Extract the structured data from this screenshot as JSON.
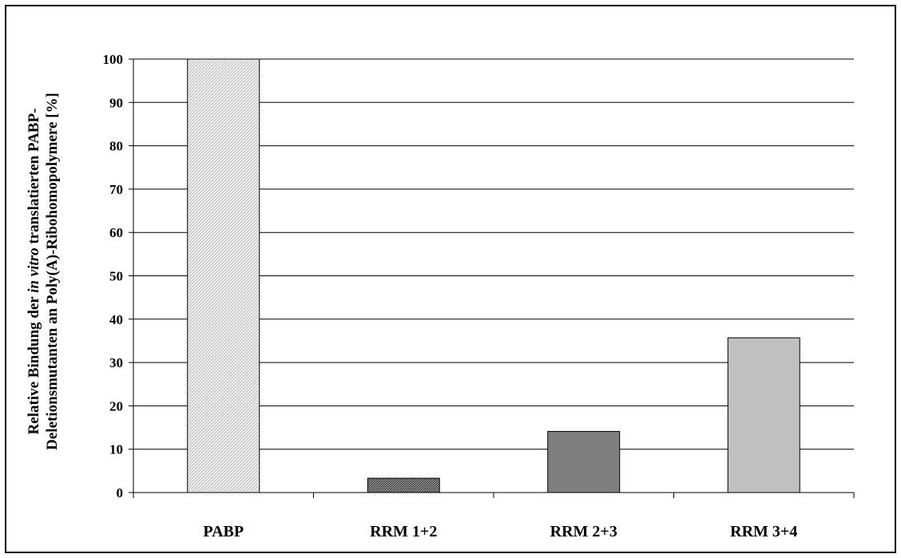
{
  "chart_data": {
    "type": "bar",
    "categories": [
      "PABP",
      "RRM 1+2",
      "RRM 2+3",
      "RRM 3+4"
    ],
    "values": [
      100,
      3.3,
      14.1,
      35.7
    ],
    "colors": [
      "#e0e0e0",
      "#6e6e6e",
      "#7f7f7f",
      "#c0c0c0"
    ],
    "patterns": [
      "light-hatch",
      "dense-hatch",
      "solid",
      "solid"
    ],
    "title": "",
    "xlabel": "",
    "ylabel_line1_prefix": "Relative Bindung der ",
    "ylabel_line1_italic": "in vitro",
    "ylabel_line1_suffix": "  translatierten PABP-",
    "ylabel_line2": "Deletionsmutanten an Poly(A)-Ribohomopolymere [%]",
    "ylim": [
      0,
      100
    ],
    "yticks": [
      0,
      10,
      20,
      30,
      40,
      50,
      60,
      70,
      80,
      90,
      100
    ],
    "grid": true
  }
}
